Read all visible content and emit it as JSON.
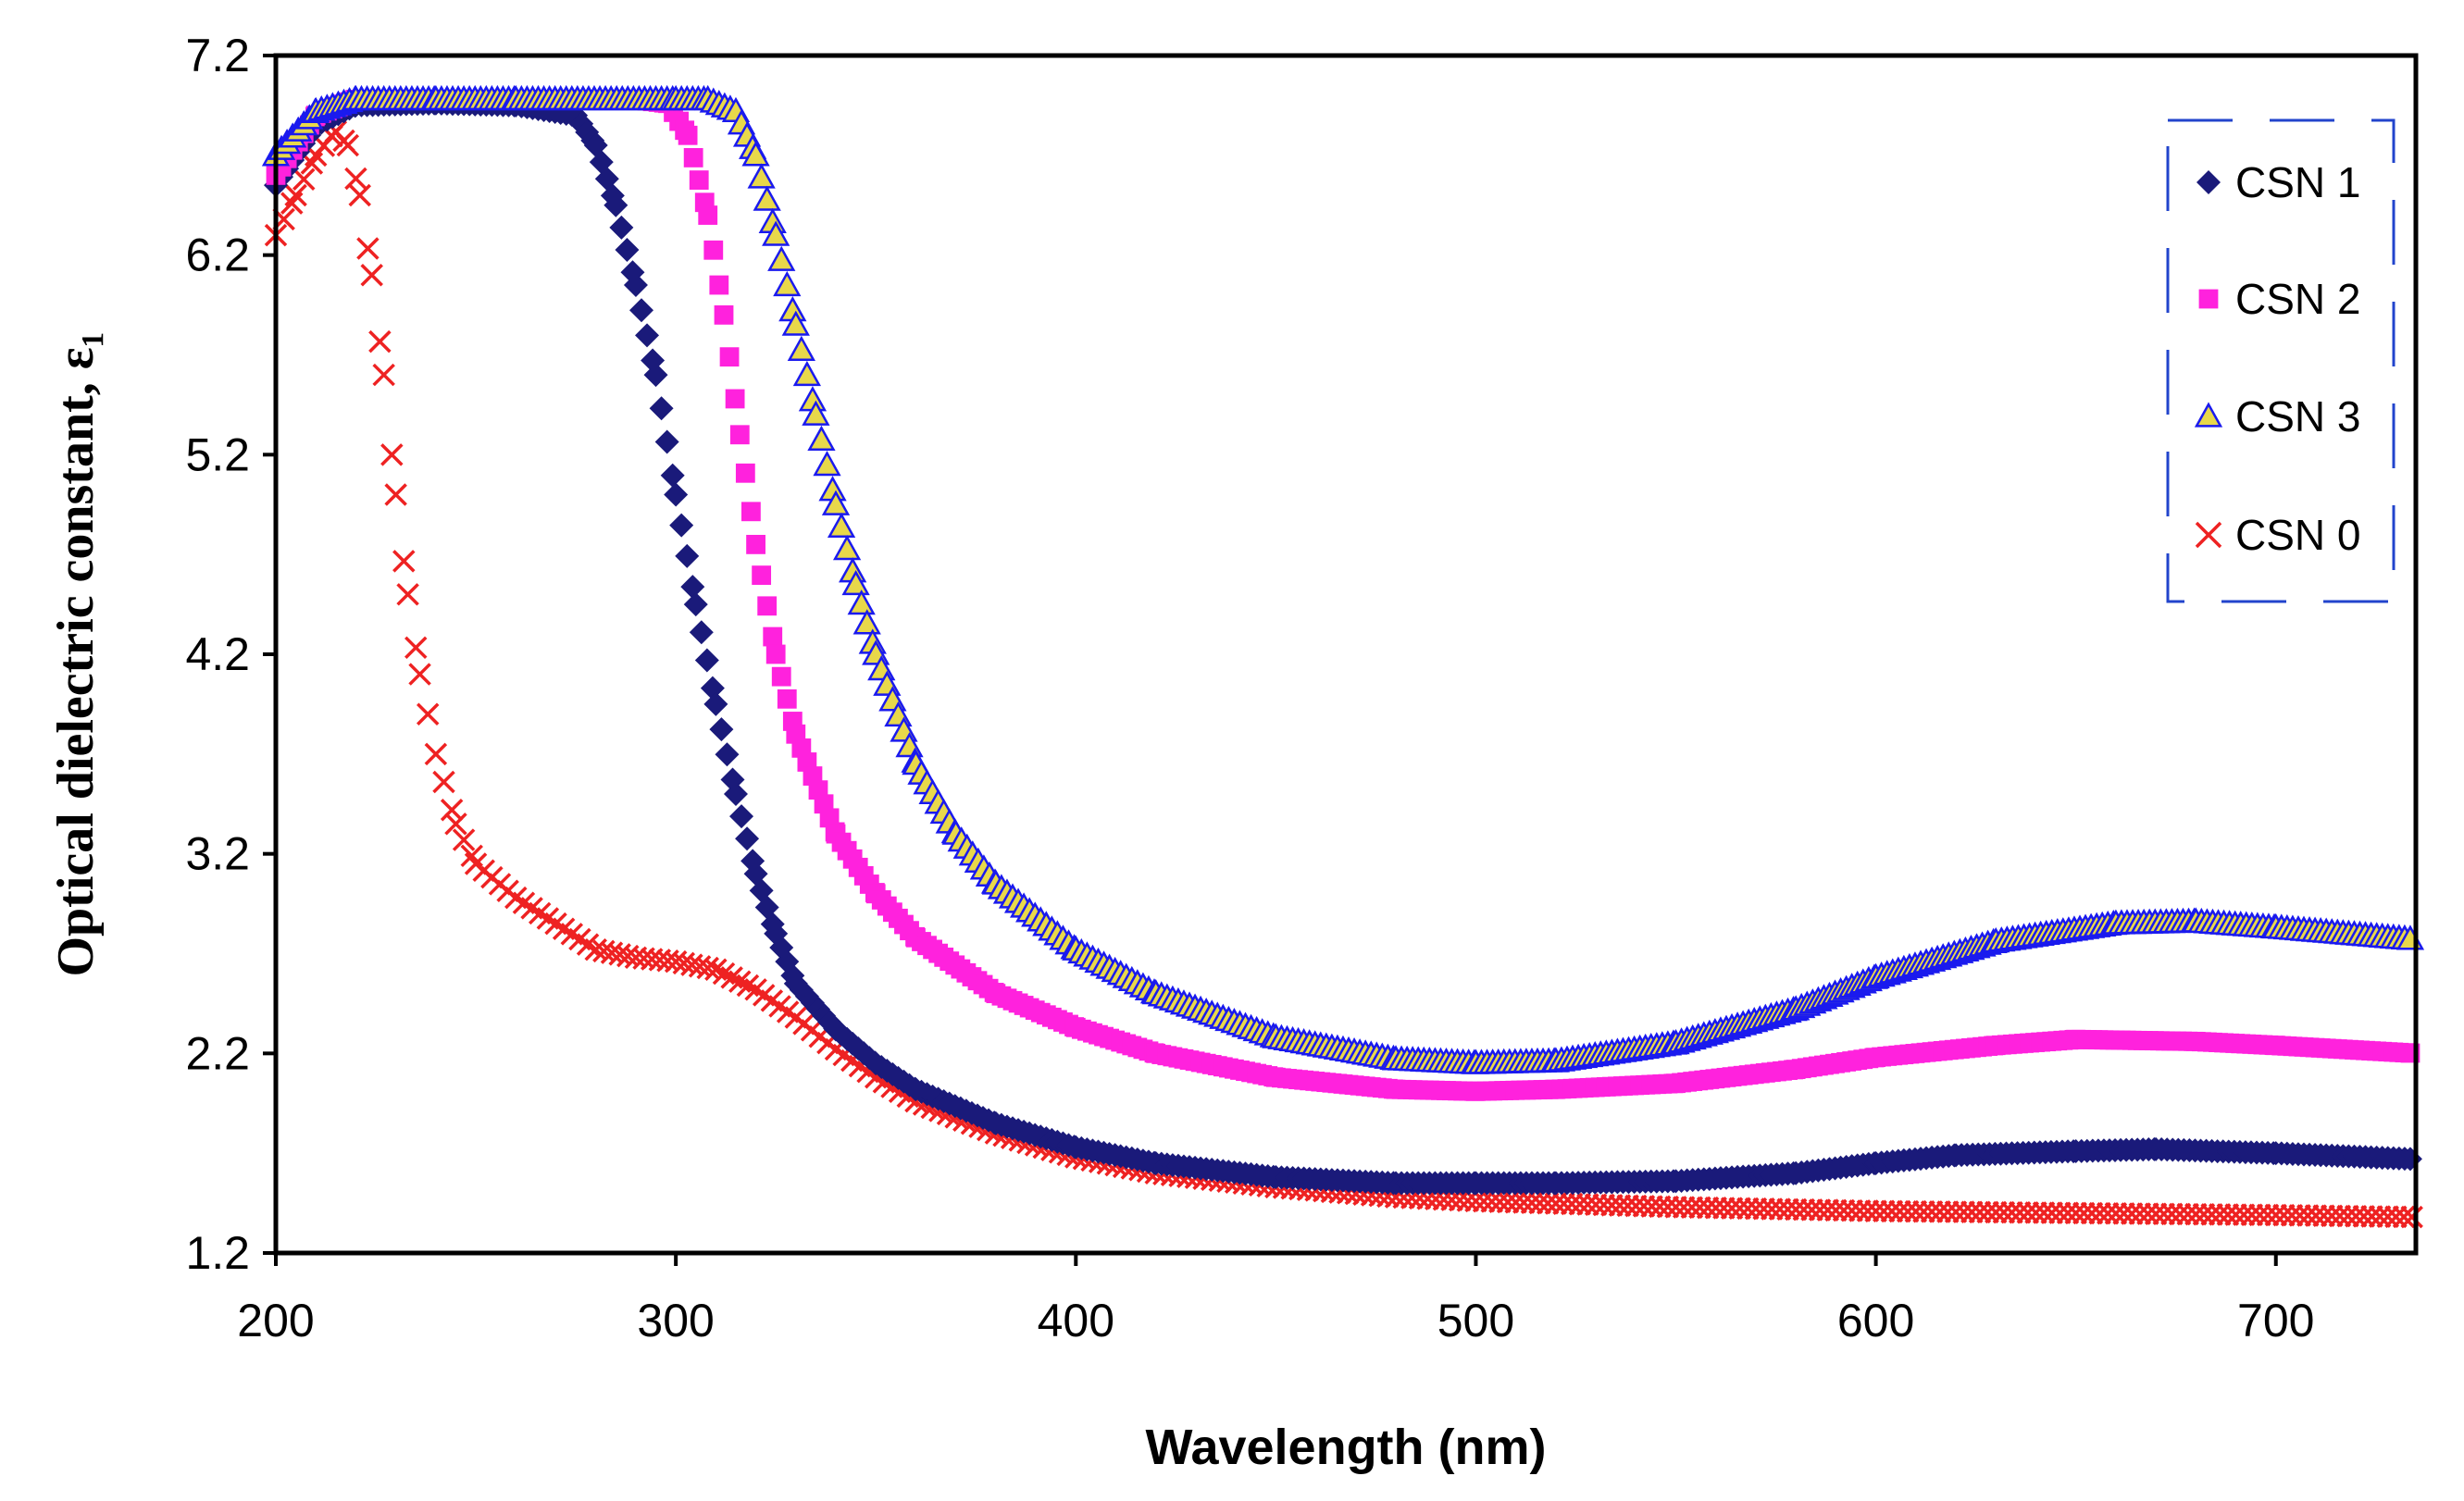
{
  "chart_data": {
    "type": "scatter",
    "title": "",
    "xlabel": "Wavelength (nm)",
    "ylabel": "Optical dielectric constant, ε₁",
    "xlim": [
      200,
      735
    ],
    "ylim": [
      1.2,
      7.2
    ],
    "x_ticks": [
      "200",
      "300",
      "400",
      "500",
      "600",
      "700"
    ],
    "y_ticks": [
      "1.2",
      "2.2",
      "3.2",
      "4.2",
      "5.2",
      "6.2",
      "7.2"
    ],
    "grid": false,
    "legend_position": "top-right",
    "series": [
      {
        "name": "CSN 1",
        "marker": "diamond",
        "color": "#1a1a7a",
        "points": [
          [
            200,
            6.55
          ],
          [
            210,
            6.85
          ],
          [
            220,
            6.95
          ],
          [
            240,
            6.96
          ],
          [
            260,
            6.95
          ],
          [
            275,
            6.9
          ],
          [
            280,
            6.75
          ],
          [
            285,
            6.45
          ],
          [
            290,
            6.05
          ],
          [
            295,
            5.6
          ],
          [
            300,
            5.0
          ],
          [
            305,
            4.45
          ],
          [
            310,
            3.95
          ],
          [
            315,
            3.5
          ],
          [
            320,
            3.1
          ],
          [
            325,
            2.8
          ],
          [
            330,
            2.55
          ],
          [
            340,
            2.32
          ],
          [
            350,
            2.15
          ],
          [
            360,
            2.02
          ],
          [
            380,
            1.85
          ],
          [
            400,
            1.73
          ],
          [
            420,
            1.65
          ],
          [
            450,
            1.58
          ],
          [
            480,
            1.55
          ],
          [
            500,
            1.55
          ],
          [
            520,
            1.55
          ],
          [
            550,
            1.56
          ],
          [
            580,
            1.6
          ],
          [
            600,
            1.65
          ],
          [
            620,
            1.69
          ],
          [
            650,
            1.71
          ],
          [
            670,
            1.72
          ],
          [
            700,
            1.7
          ],
          [
            735,
            1.67
          ]
        ]
      },
      {
        "name": "CSN 2",
        "marker": "square",
        "color": "#ff22dd",
        "points": [
          [
            200,
            6.6
          ],
          [
            210,
            6.9
          ],
          [
            220,
            6.98
          ],
          [
            240,
            6.98
          ],
          [
            260,
            6.98
          ],
          [
            290,
            6.98
          ],
          [
            298,
            6.96
          ],
          [
            303,
            6.8
          ],
          [
            308,
            6.4
          ],
          [
            312,
            5.9
          ],
          [
            316,
            5.3
          ],
          [
            320,
            4.75
          ],
          [
            325,
            4.2
          ],
          [
            330,
            3.8
          ],
          [
            340,
            3.3
          ],
          [
            350,
            3.0
          ],
          [
            360,
            2.78
          ],
          [
            380,
            2.5
          ],
          [
            400,
            2.33
          ],
          [
            420,
            2.2
          ],
          [
            450,
            2.08
          ],
          [
            480,
            2.02
          ],
          [
            500,
            2.01
          ],
          [
            520,
            2.02
          ],
          [
            550,
            2.05
          ],
          [
            580,
            2.12
          ],
          [
            600,
            2.18
          ],
          [
            630,
            2.24
          ],
          [
            650,
            2.27
          ],
          [
            680,
            2.26
          ],
          [
            700,
            2.24
          ],
          [
            735,
            2.2
          ]
        ]
      },
      {
        "name": "CSN 3",
        "marker": "triangle",
        "color": "#1a1aee",
        "points": [
          [
            200,
            6.7
          ],
          [
            210,
            6.92
          ],
          [
            220,
            6.98
          ],
          [
            240,
            6.98
          ],
          [
            260,
            6.98
          ],
          [
            300,
            6.98
          ],
          [
            308,
            6.98
          ],
          [
            315,
            6.92
          ],
          [
            320,
            6.7
          ],
          [
            325,
            6.3
          ],
          [
            330,
            5.85
          ],
          [
            335,
            5.4
          ],
          [
            340,
            4.95
          ],
          [
            345,
            4.55
          ],
          [
            350,
            4.2
          ],
          [
            360,
            3.65
          ],
          [
            370,
            3.3
          ],
          [
            380,
            3.05
          ],
          [
            400,
            2.72
          ],
          [
            420,
            2.5
          ],
          [
            450,
            2.28
          ],
          [
            480,
            2.17
          ],
          [
            500,
            2.15
          ],
          [
            520,
            2.16
          ],
          [
            550,
            2.25
          ],
          [
            580,
            2.42
          ],
          [
            600,
            2.58
          ],
          [
            630,
            2.76
          ],
          [
            660,
            2.85
          ],
          [
            680,
            2.86
          ],
          [
            700,
            2.83
          ],
          [
            735,
            2.77
          ]
        ]
      },
      {
        "name": "CSN 0",
        "marker": "x",
        "color": "#ee2222",
        "points": [
          [
            200,
            6.3
          ],
          [
            205,
            6.5
          ],
          [
            210,
            6.7
          ],
          [
            215,
            6.82
          ],
          [
            218,
            6.75
          ],
          [
            221,
            6.5
          ],
          [
            224,
            6.1
          ],
          [
            227,
            5.6
          ],
          [
            230,
            5.0
          ],
          [
            233,
            4.5
          ],
          [
            236,
            4.1
          ],
          [
            240,
            3.7
          ],
          [
            245,
            3.35
          ],
          [
            250,
            3.15
          ],
          [
            260,
            2.98
          ],
          [
            270,
            2.85
          ],
          [
            280,
            2.72
          ],
          [
            290,
            2.68
          ],
          [
            300,
            2.66
          ],
          [
            310,
            2.62
          ],
          [
            320,
            2.52
          ],
          [
            330,
            2.38
          ],
          [
            340,
            2.22
          ],
          [
            350,
            2.08
          ],
          [
            360,
            1.96
          ],
          [
            380,
            1.8
          ],
          [
            400,
            1.68
          ],
          [
            420,
            1.6
          ],
          [
            450,
            1.53
          ],
          [
            480,
            1.48
          ],
          [
            500,
            1.46
          ],
          [
            550,
            1.43
          ],
          [
            600,
            1.41
          ],
          [
            650,
            1.4
          ],
          [
            700,
            1.39
          ],
          [
            735,
            1.38
          ]
        ]
      }
    ]
  }
}
